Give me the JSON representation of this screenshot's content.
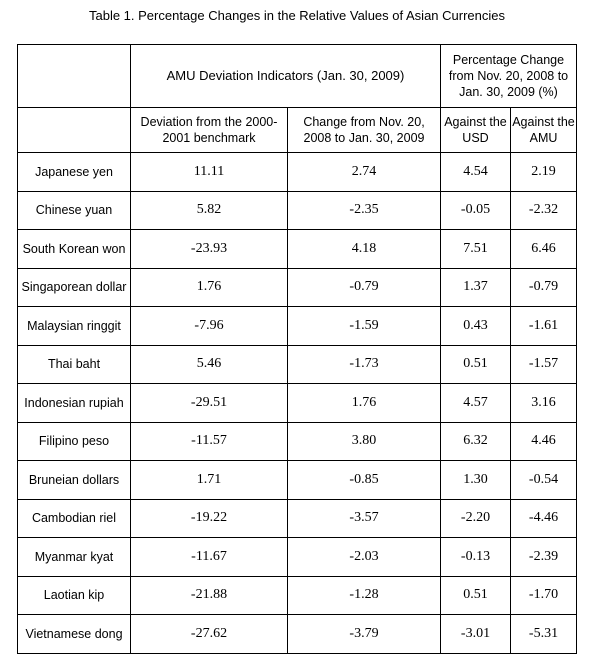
{
  "title": "Table 1. Percentage Changes in the Relative Values of Asian Currencies",
  "headers": {
    "group_amu": "AMU Deviation Indicators (Jan. 30, 2009)",
    "group_pct": "Percentage Change from Nov. 20, 2008 to Jan. 30, 2009 (%)",
    "col_deviation": "Deviation from the 2000-2001 benchmark",
    "col_change": "Change from Nov. 20, 2008 to Jan. 30, 2009",
    "col_usd": "Against the USD",
    "col_amu": "Against the AMU"
  },
  "rows": [
    {
      "currency": "Japanese yen",
      "deviation": "11.11",
      "change": "2.74",
      "usd": "4.54",
      "amu": "2.19"
    },
    {
      "currency": "Chinese yuan",
      "deviation": "5.82",
      "change": "-2.35",
      "usd": "-0.05",
      "amu": "-2.32"
    },
    {
      "currency": "South Korean won",
      "deviation": "-23.93",
      "change": "4.18",
      "usd": "7.51",
      "amu": "6.46"
    },
    {
      "currency": "Singaporean dollar",
      "deviation": "1.76",
      "change": "-0.79",
      "usd": "1.37",
      "amu": "-0.79"
    },
    {
      "currency": "Malaysian ringgit",
      "deviation": "-7.96",
      "change": "-1.59",
      "usd": "0.43",
      "amu": "-1.61"
    },
    {
      "currency": "Thai baht",
      "deviation": "5.46",
      "change": "-1.73",
      "usd": "0.51",
      "amu": "-1.57"
    },
    {
      "currency": "Indonesian rupiah",
      "deviation": "-29.51",
      "change": "1.76",
      "usd": "4.57",
      "amu": "3.16"
    },
    {
      "currency": "Filipino peso",
      "deviation": "-11.57",
      "change": "3.80",
      "usd": "6.32",
      "amu": "4.46"
    },
    {
      "currency": "Bruneian dollars",
      "deviation": "1.71",
      "change": "-0.85",
      "usd": "1.30",
      "amu": "-0.54"
    },
    {
      "currency": "Cambodian riel",
      "deviation": "-19.22",
      "change": "-3.57",
      "usd": "-2.20",
      "amu": "-4.46"
    },
    {
      "currency": "Myanmar kyat",
      "deviation": "-11.67",
      "change": "-2.03",
      "usd": "-0.13",
      "amu": "-2.39"
    },
    {
      "currency": "Laotian kip",
      "deviation": "-21.88",
      "change": "-1.28",
      "usd": "0.51",
      "amu": "-1.70"
    },
    {
      "currency": "Vietnamese dong",
      "deviation": "-27.62",
      "change": "-3.79",
      "usd": "-3.01",
      "amu": "-5.31"
    }
  ]
}
